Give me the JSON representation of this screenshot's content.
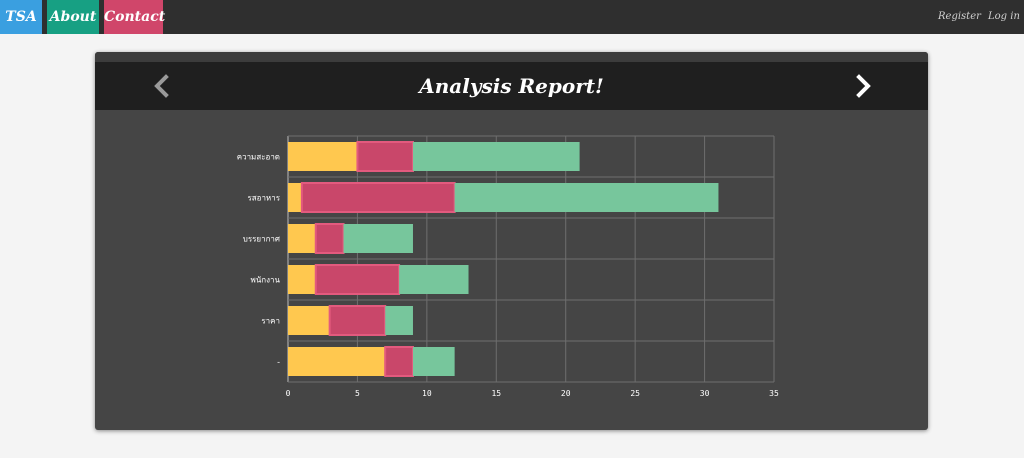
{
  "nav": {
    "brand": "TSA",
    "about": "About",
    "contact": "Contact",
    "register": "Register",
    "login": "Log in"
  },
  "panel": {
    "title": "Analysis Report!",
    "prev_icon": "chevron-left-icon",
    "next_icon": "chevron-right-icon"
  },
  "colors": {
    "brand": "#3a9fe0",
    "about": "#17a083",
    "contact": "#d0466a",
    "series_yellow": "#ffc84f",
    "series_red": "#c9476a",
    "series_green": "#77c69c"
  },
  "chart_data": {
    "type": "bar",
    "orientation": "horizontal",
    "stacked": true,
    "categories": [
      "ความสะอาด",
      "รสอาหาร",
      "บรรยากาศ",
      "พนักงาน",
      "ราคา",
      "-"
    ],
    "series": [
      {
        "values": [
          5,
          1,
          2,
          2,
          3,
          7
        ],
        "color": "#ffc84f"
      },
      {
        "values": [
          4,
          11,
          2,
          6,
          4,
          2
        ],
        "color": "#c9476a"
      },
      {
        "values": [
          12,
          19,
          5,
          5,
          2,
          3
        ],
        "color": "#77c69c"
      }
    ],
    "xlim": [
      0,
      35
    ],
    "xticks": [
      "0",
      "5",
      "10",
      "15",
      "20",
      "25",
      "30",
      "35"
    ],
    "grid": true
  }
}
